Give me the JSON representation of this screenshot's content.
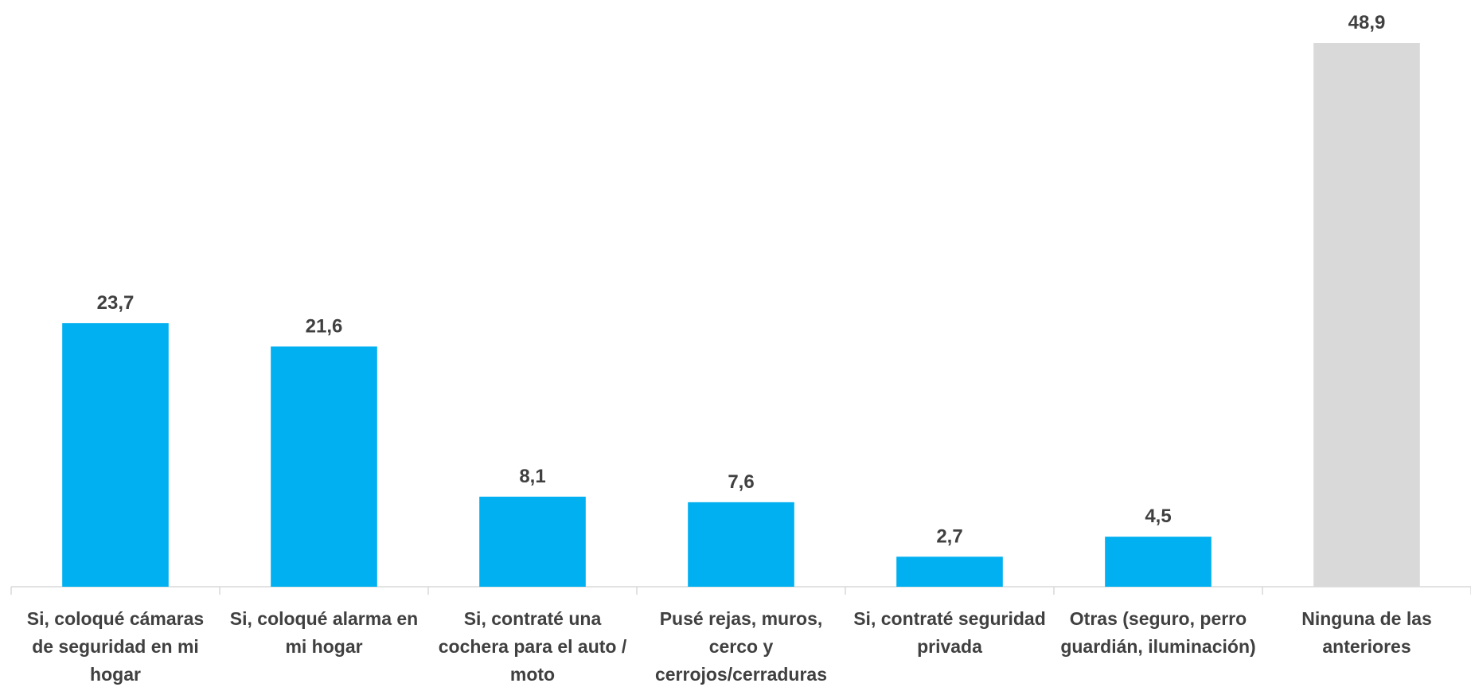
{
  "chart_data": {
    "type": "bar",
    "categories": [
      "Si, coloqué cámaras de seguridad en mi hogar",
      "Si, coloqué alarma en mi hogar",
      "Si, contraté una cochera para el auto / moto",
      "Pusé rejas, muros, cerco y cerrojos/cerraduras",
      "Si, contraté seguridad privada",
      "Otras (seguro, perro guardián, iluminación)",
      "Ninguna de las anteriores"
    ],
    "values": [
      23.7,
      21.6,
      8.1,
      7.6,
      2.7,
      4.5,
      48.9
    ],
    "value_labels": [
      "23,7",
      "21,6",
      "8,1",
      "7,6",
      "2,7",
      "4,5",
      "48,9"
    ],
    "colors": [
      "#00b0f0",
      "#00b0f0",
      "#00b0f0",
      "#00b0f0",
      "#00b0f0",
      "#00b0f0",
      "#d9d9d9"
    ]
  }
}
